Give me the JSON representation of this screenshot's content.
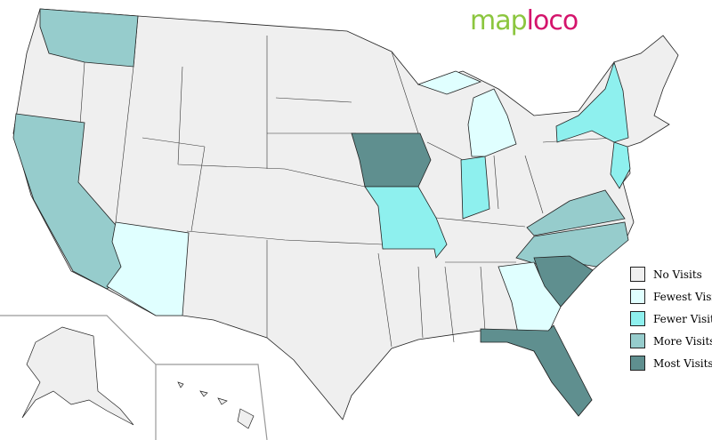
{
  "logo": {
    "part1": "map",
    "part2": "loco"
  },
  "colors": {
    "no": "#efefef",
    "fewest": "#e0ffff",
    "fewer": "#8ef0ee",
    "more": "#96cccc",
    "most": "#5f8f8f"
  },
  "legend": [
    {
      "label": "No Visits",
      "color": "#efefef"
    },
    {
      "label": "Fewest Visits",
      "color": "#e0ffff"
    },
    {
      "label": "Fewer Visits",
      "color": "#8ef0ee"
    },
    {
      "label": "More Visits",
      "color": "#96cccc"
    },
    {
      "label": "Most Visits",
      "color": "#5f8f8f"
    }
  ],
  "states": {
    "Washington": "more",
    "California": "more",
    "Arizona": "fewest",
    "Iowa": "most",
    "Missouri": "fewer",
    "Indiana": "fewer",
    "Michigan": "fewest",
    "New York": "fewer",
    "New Jersey": "fewer",
    "Virginia": "more",
    "North Carolina": "more",
    "South Carolina": "most",
    "Georgia": "fewest",
    "Florida": "most"
  }
}
